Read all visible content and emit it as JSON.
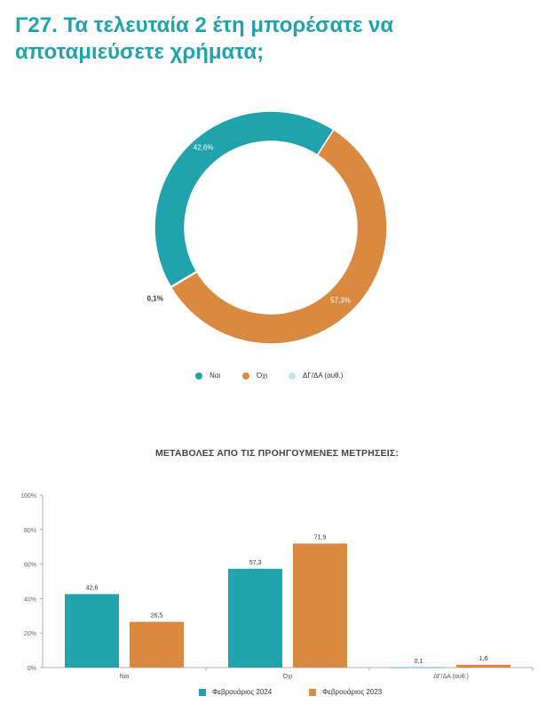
{
  "title": "Γ27. Τα τελευταία 2 έτη μπορέσατε να αποταμιεύσετε χρήματα;",
  "colors": {
    "teal": "#21a3ae",
    "orange": "#d98940",
    "light": "#bfe8ec",
    "title": "#1fa3ad"
  },
  "donut": {
    "legend": [
      "Ναι",
      "Όχι",
      "ΔΓ/ΔΑ (αυθ.)"
    ],
    "labels": [
      "42,6%",
      "57,3%",
      "0,1%"
    ]
  },
  "bars_subtitle": "ΜΕΤΑΒΟΛΕΣ ΑΠΟ ΤΙΣ ΠΡΟΗΓΟΥΜΕΝΕΣ ΜΕΤΡΗΣΕΙΣ:",
  "chart_data": [
    {
      "type": "pie",
      "categories": [
        "Ναι",
        "Όχι",
        "ΔΓ/ΔΑ (αυθ.)"
      ],
      "values": [
        42.6,
        57.3,
        0.1
      ]
    },
    {
      "type": "bar",
      "categories": [
        "Ναι",
        "Όχι",
        "ΔΓ/ΔΑ (αυθ.)"
      ],
      "series": [
        {
          "name": "Φεβρουάριος 2024",
          "values": [
            42.6,
            57.3,
            0.1
          ],
          "labels": [
            "42,6",
            "57,3",
            "0,1"
          ]
        },
        {
          "name": "Φεβρουάριος 2023",
          "values": [
            26.5,
            71.9,
            1.6
          ],
          "labels": [
            "26,5",
            "71,9",
            "1,6"
          ]
        }
      ],
      "ylim": [
        0,
        100
      ],
      "yticks": [
        "0%",
        "20%",
        "40%",
        "60%",
        "80%",
        "100%"
      ],
      "grid": false,
      "legend": "bottom"
    }
  ]
}
